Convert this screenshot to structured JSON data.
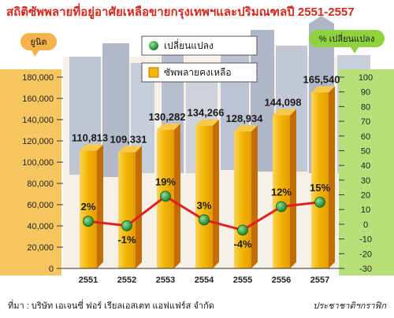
{
  "chart_data": {
    "type": "bar",
    "title": "สถิติซัพพลายที่อยู่อาศัยเหลือขายกรุงเทพฯและปริมณฑลปี 2551-2557",
    "categories": [
      "2551",
      "2552",
      "2553",
      "2554",
      "2555",
      "2556",
      "2557"
    ],
    "series": [
      {
        "name": "ซัพพลายคงเหลือ",
        "type": "bar",
        "axis": "left",
        "color": "#f2b705",
        "values": [
          110813,
          109331,
          130282,
          134266,
          128934,
          144098,
          165540
        ],
        "labels": [
          "110,813",
          "109,331",
          "130,282",
          "134,266",
          "128,934",
          "144,098",
          "165,540"
        ]
      },
      {
        "name": "เปลี่ยนแปลง",
        "type": "line",
        "axis": "right",
        "color": "#e02020",
        "marker_color": "#1f8f3a",
        "values": [
          2,
          -1,
          19,
          3,
          -4,
          12,
          15
        ],
        "labels": [
          "2%",
          "-1%",
          "19%",
          "3%",
          "-4%",
          "12%",
          "15%"
        ]
      }
    ],
    "left_axis": {
      "label": "ยูนิต",
      "ylim": [
        0,
        180000
      ],
      "ticks": [
        "0",
        "20,000",
        "40,000",
        "60,000",
        "80,000",
        "100,000",
        "120,000",
        "140,000",
        "160,000",
        "180,000"
      ]
    },
    "right_axis": {
      "label": "% เปลี่ยนแปลง",
      "ylim": [
        -30,
        100
      ],
      "ticks": [
        "-30",
        "-20",
        "-10",
        "0",
        "10",
        "20",
        "30",
        "40",
        "50",
        "60",
        "70",
        "80",
        "90",
        "100"
      ]
    },
    "legend": [
      "เปลี่ยนแปลง",
      "ซัพพลายคงเหลือ"
    ],
    "legend_position": "top-center",
    "grid": false
  },
  "footer": {
    "source": "ที่มา : บริษัท เอเจนซี่ ฟอร์ เรียลเอสเตท แอฟแฟร์ส จำกัด",
    "credit": "ประชาชาติฯกราฟิก"
  },
  "colors": {
    "title": "#d42a1e",
    "bar_front": "#f2b705",
    "bar_side": "#c26d06",
    "line": "#e02020",
    "marker": "#1f8f3a",
    "left_badge": "#f6b24a",
    "right_badge": "#8fd13f"
  }
}
